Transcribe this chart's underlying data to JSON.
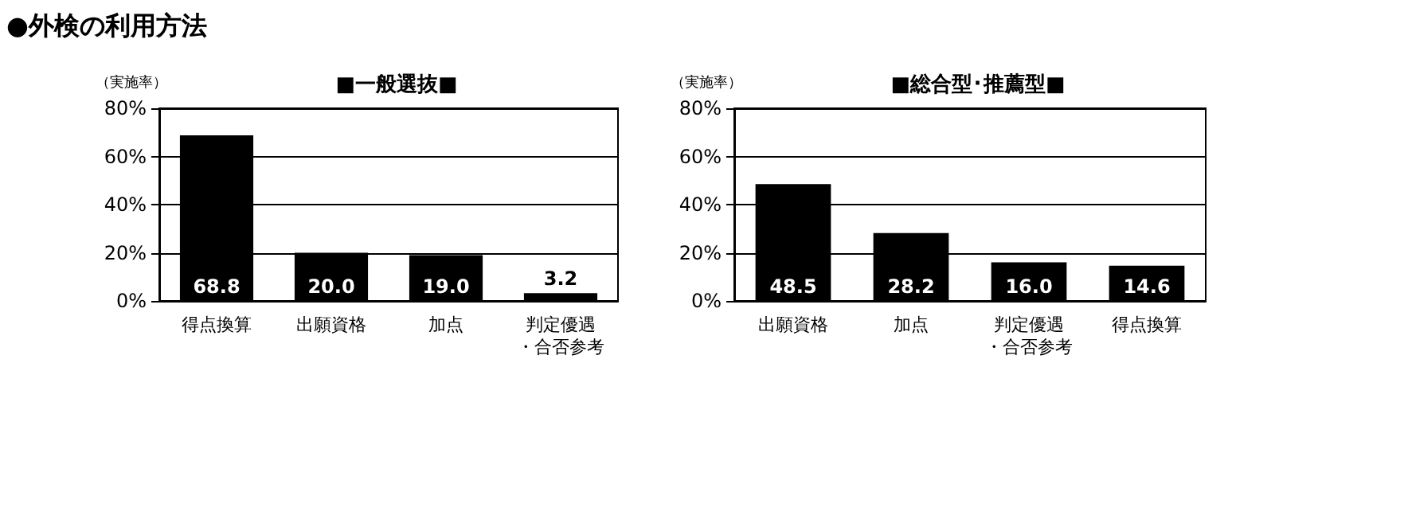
{
  "chart_data": [
    {
      "type": "bar",
      "title": "■一般選抜■",
      "ylabel": "（実施率）",
      "annotations": [
        "●外検の利用方法"
      ],
      "categories": [
        "得点換算",
        "出願資格",
        "加点",
        "判定優遇・合否参考"
      ],
      "values": [
        68.8,
        20.0,
        19.0,
        3.2
      ],
      "value_labels": [
        "68.8",
        "20.0",
        "19.0",
        "3.2"
      ],
      "color": "#000000",
      "ylim": [
        0,
        80
      ],
      "yticks": [
        {
          "value": 0,
          "label": "0%"
        },
        {
          "value": 20,
          "label": "20%"
        },
        {
          "value": 40,
          "label": "40%"
        },
        {
          "value": 60,
          "label": "60%"
        },
        {
          "value": 80,
          "label": "80%"
        }
      ],
      "grid": "y"
    },
    {
      "type": "bar",
      "title": "■総合型･推薦型■",
      "ylabel": "（実施率）",
      "categories": [
        "出願資格",
        "加点",
        "判定優遇・合否参考",
        "得点換算"
      ],
      "values": [
        48.5,
        28.2,
        16.0,
        14.6
      ],
      "value_labels": [
        "48.5",
        "28.2",
        "16.0",
        "14.6"
      ],
      "color": "#000000",
      "ylim": [
        0,
        80
      ],
      "yticks": [
        {
          "value": 0,
          "label": "0%"
        },
        {
          "value": 20,
          "label": "20%"
        },
        {
          "value": 40,
          "label": "40%"
        },
        {
          "value": 60,
          "label": "60%"
        },
        {
          "value": 80,
          "label": "80%"
        }
      ],
      "grid": "y"
    }
  ]
}
